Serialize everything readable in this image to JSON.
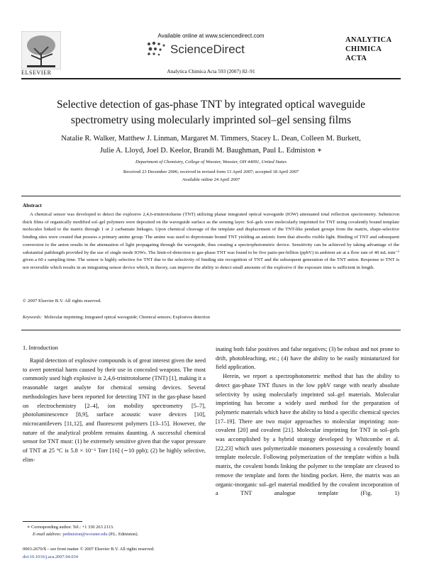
{
  "header": {
    "available_online": "Available online at www.sciencedirect.com",
    "sciencedirect": "ScienceDirect",
    "publisher": "ELSEVIER",
    "citation": "Analytica Chimica Acta 593 (2007) 82–91",
    "journal_logo": [
      "ANALYTICA",
      "CHIMICA",
      "ACTA"
    ]
  },
  "article": {
    "title": [
      "Selective detection of gas-phase TNT by integrated optical waveguide",
      "spectrometry using molecularly imprinted sol–gel sensing films"
    ],
    "authors": [
      "Natalie R. Walker, Matthew J. Linman, Margaret M. Timmers, Stacey L. Dean, Colleen M. Burkett,",
      "Julie A. Lloyd, Joel D. Keelor, Brandi M. Baughman, Paul L. Edmiston ∗"
    ],
    "affiliation": "Department of Chemistry, College of Wooster, Wooster, OH 44691, United States",
    "received": "Received 23 December 2006; received in revised form 13 April 2007; accepted 18 April 2007",
    "available": "Available online 24 April 2007"
  },
  "abstract": {
    "heading": "Abstract",
    "text": "A chemical sensor was developed to detect the explosive 2,4,6-trinitrotoluene (TNT) utilizing planar integrated optical waveguide (IOW) attenuated total reflection spectrometry. Submicron thick films of organically modified sol–gel polymers were deposited on the waveguide surface as the sensing layer. Sol–gels were molecularly imprinted for TNT using covalently bound template molecules linked to the matrix through 1 or 2 carbamate linkages. Upon chemical cleavage of the template and displacement of the TNT-like pendant groups from the matrix, shape-selective binding sites were created that possess a primary amine group. The amine was used to deprotonate bound TNT yielding an anionic form that absorbs visible light. Binding of TNT and subsequent conversion to the anion results in the attenuation of light propagating through the waveguide, thus creating a spectrophotometric device. Sensitivity can be achieved by taking advantage of the substantial pathlength provided by the use of single mode IOWs. The limit-of-detection to gas-phase TNT was found to be five parts-per-billion (ppbV) in ambient air at a flow rate of 40 mL min⁻¹ given a 60 s sampling time. The sensor is highly selective for TNT due to the selectivity of binding site recognition of TNT and the subsequent generation of the TNT anion. Response to TNT is not reversible which results in an integrating sensor device which, in theory, can improve the ability to detect small amounts of the explosive if the exposure time is sufficient in length.",
    "copyright": "© 2007 Elsevier B.V. All rights reserved."
  },
  "keywords": {
    "label": "Keywords:",
    "text": "Molecular imprinting; Integrated optical waveguide; Chemical sensors; Explosives detection"
  },
  "body": {
    "heading": "1. Introduction",
    "left": "Rapid detection of explosive compounds is of great interest given the need to avert potential harm caused by their use in concealed weapons. The most commonly used high explosive is 2,4,6-trinitrotoluene (TNT) [1], making it a reasonable target analyte for chemical sensing devices. Several methodologies have been reported for detecting TNT in the gas-phase based on electrochemistry [2–4], ion mobility spectrometry [5–7], photoluminescence [8,9], surface acoustic wave devices [10], microcantilevers [11,12], and fluorescent polymers [13–15]. However, the nature of the analytical problem remains daunting. A successful chemical sensor for TNT must: (1) be extremely sensitive given that the vapor pressure of TNT at 25 °C is 5.8 × 10⁻⁶ Torr [16] (∼10 ppb); (2) be highly selective, elim-",
    "right": [
      "inating both false positives and false negatives; (3) be robust and not prone to drift, photobleaching, etc.; (4) have the ability to be easily miniaturized for field application.",
      "Herein, we report a spectrophotometric method that has the ability to detect gas-phase TNT fluxes in the low ppbV range with nearly absolute selectivity by using molecularly imprinted sol–gel materials. Molecular imprinting has become a widely used method for the preparation of polymeric materials which have the ability to bind a specific chemical species [17–19]. There are two major approaches to molecular imprinting: non-covalent [20] and covalent [21]. Molecular imprinting for TNT in sol–gels was accomplished by a hybrid strategy developed by Whitcombe et al. [22,23] which uses polymerizable monomers possessing a covalently bound template molecule. Following polymerization of the template within a bulk matrix, the covalent bonds linking the polymer to the template are cleaved to remove the template and form the binding pocket. Here, the matrix was an organic-inorganic sol–gel material modified by the covalent incorporation of a TNT analogue template (Fig. 1)"
    ]
  },
  "footnote": {
    "corresponding": "∗ Corresponding author. Tel.: +1 330 263 2113.",
    "email_label": "E-mail address:",
    "email": "pedmiston@wooster.edu",
    "email_name": "(P.L. Edmiston)."
  },
  "footer": {
    "front_matter": "0003-2670/$ – see front matter © 2007 Elsevier B.V. All rights reserved.",
    "doi": "doi:10.1016/j.aca.2007.04.034"
  }
}
